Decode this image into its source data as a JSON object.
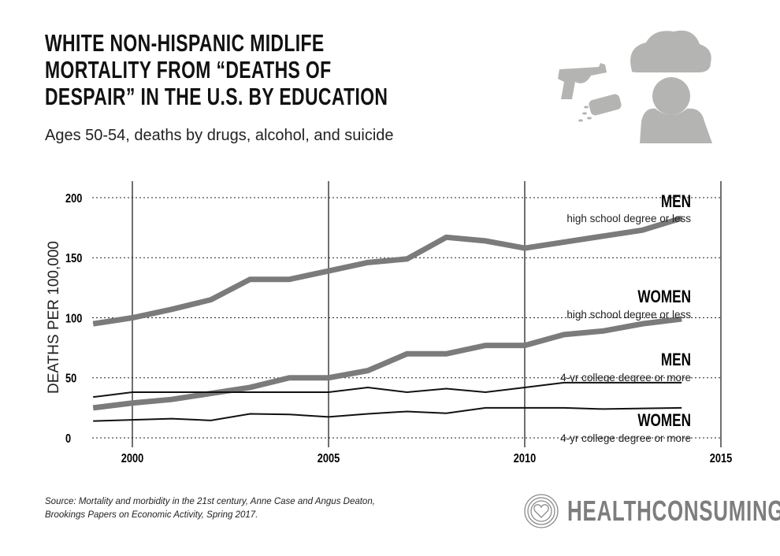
{
  "title_lines": [
    "WHITE NON-HISPANIC MIDLIFE",
    "MORTALITY FROM “DEATHS OF",
    "DESPAIR” IN THE U.S. BY EDUCATION"
  ],
  "subtitle": "Ages 50-54, deaths by drugs, alcohol, and suicide",
  "source_lines": [
    "Source: Mortality and morbidity in the 21st century, Anne Case and Angus Deaton,",
    "Brookings Papers on Economic Activity, Spring 2017."
  ],
  "logo": {
    "text": "HEALTHCONSUMING",
    "icon": "heart-rings-icon"
  },
  "icons": [
    "gun-icon",
    "pill-bottle-icon",
    "cloud-icon",
    "person-icon"
  ],
  "colors": {
    "thick_line": "#7b7c7a",
    "thin_line": "#111111",
    "icon_gray": "#b4b5b3"
  },
  "chart_data": {
    "type": "line",
    "title": "White non-Hispanic midlife mortality from “deaths of despair” in the U.S. by education",
    "ylabel": "DEATHS PER 100,000",
    "xlabel": "",
    "xlim": [
      1999,
      2015
    ],
    "ylim": [
      0,
      200
    ],
    "xticks": [
      2000,
      2005,
      2010,
      2015
    ],
    "yticks": [
      0,
      50,
      100,
      150,
      200
    ],
    "grid": "horizontal dotted, vertical solid at x ticks",
    "x": [
      1999,
      2000,
      2001,
      2002,
      2003,
      2004,
      2005,
      2006,
      2007,
      2008,
      2009,
      2010,
      2011,
      2012,
      2013,
      2014
    ],
    "series": [
      {
        "name": "MEN",
        "sub": "high school degree or less",
        "style": "thick",
        "values": [
          95,
          100,
          107,
          115,
          132,
          132,
          139,
          146,
          149,
          167,
          164,
          158,
          163,
          168,
          173,
          183
        ]
      },
      {
        "name": "WOMEN",
        "sub": "high school degree or less",
        "style": "thick",
        "values": [
          25,
          29,
          32,
          37,
          42,
          50,
          50,
          56,
          70,
          70,
          77,
          77,
          86,
          89,
          95,
          99
        ]
      },
      {
        "name": "MEN",
        "sub": "4-yr college degree or more",
        "style": "thin",
        "values": [
          34,
          38,
          38,
          38,
          38,
          38,
          38,
          42,
          38,
          41,
          38,
          42,
          46,
          46,
          46,
          46
        ]
      },
      {
        "name": "WOMEN",
        "sub": "4-yr college degree or more",
        "style": "thin",
        "values": [
          14,
          15,
          16,
          14.5,
          20,
          19.5,
          17.5,
          20,
          22,
          20.5,
          25,
          25,
          25,
          24,
          24.5,
          25
        ]
      }
    ]
  }
}
